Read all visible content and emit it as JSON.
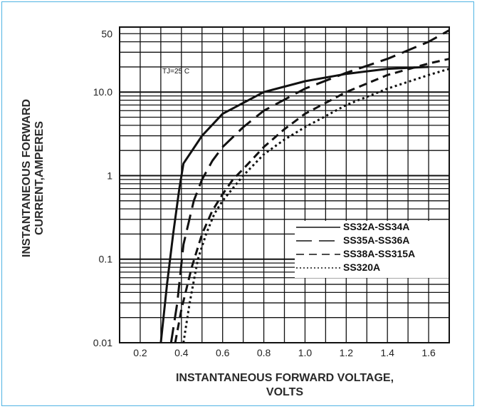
{
  "chart_data": {
    "type": "line",
    "xlabel_line1": "INSTANTANEOUS FORWARD VOLTAGE,",
    "xlabel_line2": "VOLTS",
    "ylabel_line1": "INSTANTANEOUS FORWARD",
    "ylabel_line2": "CURRENT,AMPERES",
    "annotation": "TJ=25 C",
    "xlim": [
      0.1,
      1.7
    ],
    "ylim": [
      0.01,
      60
    ],
    "yscale": "log",
    "grid": true,
    "legend_position": "lower-right",
    "x_ticks": [
      {
        "value": 0.2,
        "label": "0.2"
      },
      {
        "value": 0.4,
        "label": "0.4"
      },
      {
        "value": 0.6,
        "label": "0.6"
      },
      {
        "value": 0.8,
        "label": "0.8"
      },
      {
        "value": 1.0,
        "label": "1.0"
      },
      {
        "value": 1.2,
        "label": "1.2"
      },
      {
        "value": 1.4,
        "label": "1.4"
      },
      {
        "value": 1.6,
        "label": "1.6"
      }
    ],
    "y_ticks": [
      {
        "value": 50,
        "label": "50"
      },
      {
        "value": 10,
        "label": "10.0"
      },
      {
        "value": 1,
        "label": "1"
      },
      {
        "value": 0.1,
        "label": "0.1"
      },
      {
        "value": 0.01,
        "label": "0.01"
      }
    ],
    "series": [
      {
        "name": "SS32A-SS34A",
        "dash": "solid",
        "points": [
          [
            0.3,
            0.01
          ],
          [
            0.33,
            0.05
          ],
          [
            0.36,
            0.2
          ],
          [
            0.39,
            0.7
          ],
          [
            0.41,
            1.4
          ],
          [
            0.5,
            3.0
          ],
          [
            0.6,
            5.5
          ],
          [
            0.8,
            10
          ],
          [
            1.0,
            13.5
          ],
          [
            1.2,
            16.5
          ],
          [
            1.4,
            19
          ],
          [
            1.6,
            20
          ]
        ]
      },
      {
        "name": "SS35A-SS36A",
        "dash": "long-dash",
        "points": [
          [
            0.35,
            0.01
          ],
          [
            0.38,
            0.03
          ],
          [
            0.41,
            0.15
          ],
          [
            0.46,
            0.5
          ],
          [
            0.5,
            0.9
          ],
          [
            0.55,
            1.5
          ],
          [
            0.6,
            2.2
          ],
          [
            0.7,
            3.8
          ],
          [
            0.8,
            6
          ],
          [
            1.0,
            11
          ],
          [
            1.2,
            17
          ],
          [
            1.4,
            25
          ],
          [
            1.6,
            40
          ],
          [
            1.7,
            55
          ]
        ]
      },
      {
        "name": "SS38A-SS315A",
        "dash": "medium-dash",
        "points": [
          [
            0.37,
            0.01
          ],
          [
            0.4,
            0.025
          ],
          [
            0.45,
            0.08
          ],
          [
            0.5,
            0.2
          ],
          [
            0.55,
            0.38
          ],
          [
            0.6,
            0.6
          ],
          [
            0.65,
            0.9
          ],
          [
            0.7,
            1.2
          ],
          [
            0.8,
            2.2
          ],
          [
            0.9,
            3.6
          ],
          [
            1.0,
            5.5
          ],
          [
            1.2,
            10
          ],
          [
            1.4,
            16
          ],
          [
            1.6,
            22
          ],
          [
            1.7,
            25
          ]
        ]
      },
      {
        "name": "SS320A",
        "dash": "dotted",
        "points": [
          [
            0.41,
            0.01
          ],
          [
            0.44,
            0.03
          ],
          [
            0.48,
            0.1
          ],
          [
            0.52,
            0.2
          ],
          [
            0.56,
            0.35
          ],
          [
            0.6,
            0.5
          ],
          [
            0.7,
            1.0
          ],
          [
            0.8,
            1.8
          ],
          [
            0.9,
            2.7
          ],
          [
            1.0,
            3.8
          ],
          [
            1.2,
            7
          ],
          [
            1.4,
            11
          ],
          [
            1.6,
            16
          ],
          [
            1.7,
            19
          ]
        ]
      }
    ]
  },
  "colors": {
    "frame": "#4fb3e3",
    "ink": "#111111"
  }
}
